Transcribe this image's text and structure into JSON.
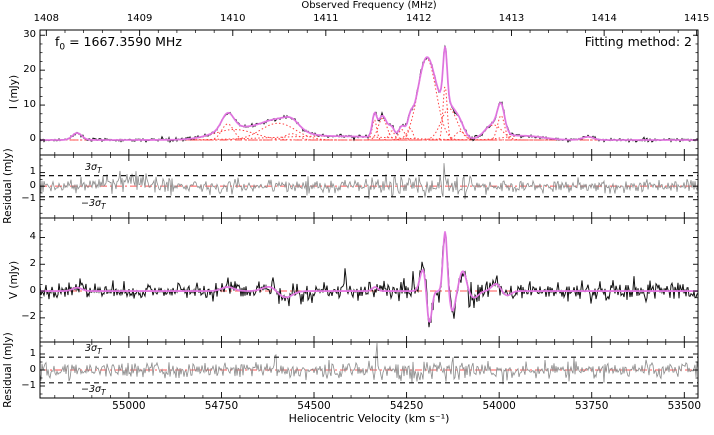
{
  "figure": {
    "annotations": {
      "f0_pre": "f",
      "f0_sub": "0",
      "f0_post": " = 1667.3590 MHz",
      "fitting_method": "Fitting method: 2"
    },
    "colors": {
      "fit": "#e678e6",
      "component": "#ff4040",
      "zero_line": "#ff5555",
      "residual_trace": "#8a8a8a",
      "data_trace": "#111111",
      "threshold_line": "#141414"
    }
  },
  "chart_data": {
    "type": "line",
    "title": "",
    "x_axis": {
      "label": "Heliocentric Velocity (km s⁻¹)",
      "range_left_to_right": [
        55240,
        53463
      ],
      "ticks": [
        55000,
        54750,
        54500,
        54250,
        54000,
        53750,
        53500
      ],
      "minor_step": 50,
      "reversed": true
    },
    "top_axis": {
      "label": "Observed Frequency (MHz)",
      "ticks": [
        1408,
        1409,
        1410,
        1411,
        1412,
        1413,
        1414,
        1415
      ],
      "minor_step_mhz": 0.2,
      "f0_mhz": 1667.359,
      "c_km_s": 299792.458
    },
    "panels": [
      {
        "id": "stokes_i",
        "ylabel": "I (mJy)",
        "ylim": [
          -4.3,
          31.5
        ],
        "yticks": [
          0,
          10,
          20,
          30
        ],
        "ytick_minor": 2.5,
        "trace_color": "#111111",
        "noise_sigma": 0.25,
        "noise_regions": [
          [
            54360,
            53960,
            1.4
          ]
        ],
        "components": [
          [
            55140,
            2.0,
            30
          ],
          [
            54733,
            4.6,
            38
          ],
          [
            54715,
            3.0,
            130
          ],
          [
            54597,
            4.8,
            110
          ],
          [
            54560,
            1.8,
            45
          ],
          [
            54460,
            1.1,
            380
          ],
          [
            54337,
            5.8,
            14
          ],
          [
            54315,
            6.2,
            28
          ],
          [
            54290,
            2.6,
            18
          ],
          [
            54263,
            3.0,
            20
          ],
          [
            54240,
            3.3,
            16
          ],
          [
            54195,
            23.3,
            58
          ],
          [
            54146,
            15.5,
            13
          ],
          [
            54135,
            9.0,
            50
          ],
          [
            54105,
            2.5,
            30
          ],
          [
            54015,
            4.3,
            55
          ],
          [
            53995,
            7.0,
            22
          ],
          [
            53935,
            1.2,
            120
          ],
          [
            53760,
            0.9,
            35
          ]
        ]
      },
      {
        "id": "residual_i",
        "ylabel": "Residual (mJy)",
        "ylim": [
          -2.35,
          2.3
        ],
        "yticks": [
          -1,
          0,
          1
        ],
        "ytick_minor": 0.5,
        "trace_color": "#8a8a8a",
        "noise_sigma": 0.23,
        "noise_regions": [
          [
            55060,
            54880,
            1.5
          ],
          [
            54360,
            54060,
            1.8
          ]
        ],
        "threshold": 0.78,
        "threshold_label": {
          "text": "3σ",
          "sub": "T"
        },
        "threshold_label_neg": {
          "text": "−3σ",
          "sub": "T"
        },
        "features": [
          [
            54985,
            0.4,
            120
          ],
          [
            54330,
            0.75,
            5
          ],
          [
            54200,
            -0.9,
            5
          ],
          [
            54148,
            0.95,
            5
          ]
        ]
      },
      {
        "id": "stokes_v",
        "ylabel": "V (mJy)",
        "ylim": [
          -3.8,
          5.45
        ],
        "yticks": [
          -2,
          0,
          2,
          4
        ],
        "ytick_minor": 0.5,
        "trace_color": "#111111",
        "noise_sigma": 0.33,
        "noise_regions": [
          [
            54250,
            54060,
            1.3
          ]
        ],
        "fit_components": [
          [
            55140,
            0.25,
            30
          ],
          [
            54733,
            0.3,
            40
          ],
          [
            54620,
            0.35,
            45
          ],
          [
            54578,
            -0.5,
            45
          ],
          [
            54335,
            0.3,
            18
          ],
          [
            54205,
            1.7,
            20
          ],
          [
            54189,
            -2.6,
            16
          ],
          [
            54146,
            4.5,
            13
          ],
          [
            54126,
            -1.5,
            18
          ],
          [
            54098,
            1.5,
            22
          ],
          [
            54068,
            -0.5,
            28
          ],
          [
            54008,
            0.55,
            28
          ],
          [
            53980,
            -0.35,
            28
          ]
        ],
        "data_spikes": [
          [
            54416,
            1.6,
            5
          ],
          [
            54233,
            1.1,
            5
          ],
          [
            54610,
            0.8,
            6
          ]
        ]
      },
      {
        "id": "residual_v",
        "ylabel": "Residual (mJy)",
        "ylim": [
          -1.75,
          1.75
        ],
        "yticks": [
          -1,
          0,
          1
        ],
        "ytick_minor": 0.5,
        "trace_color": "#8a8a8a",
        "noise_sigma": 0.26,
        "noise_regions": [
          [
            54280,
            54050,
            1.5
          ]
        ],
        "threshold": 0.8,
        "threshold_label": {
          "text": "3σ",
          "sub": "T"
        },
        "threshold_label_neg": {
          "text": "−3σ",
          "sub": "T"
        },
        "features": [
          [
            54603,
            1.0,
            5
          ],
          [
            54330,
            1.8,
            4
          ],
          [
            54318,
            -0.95,
            4
          ],
          [
            54100,
            0.8,
            4
          ],
          [
            53990,
            -0.7,
            4
          ]
        ]
      }
    ]
  }
}
